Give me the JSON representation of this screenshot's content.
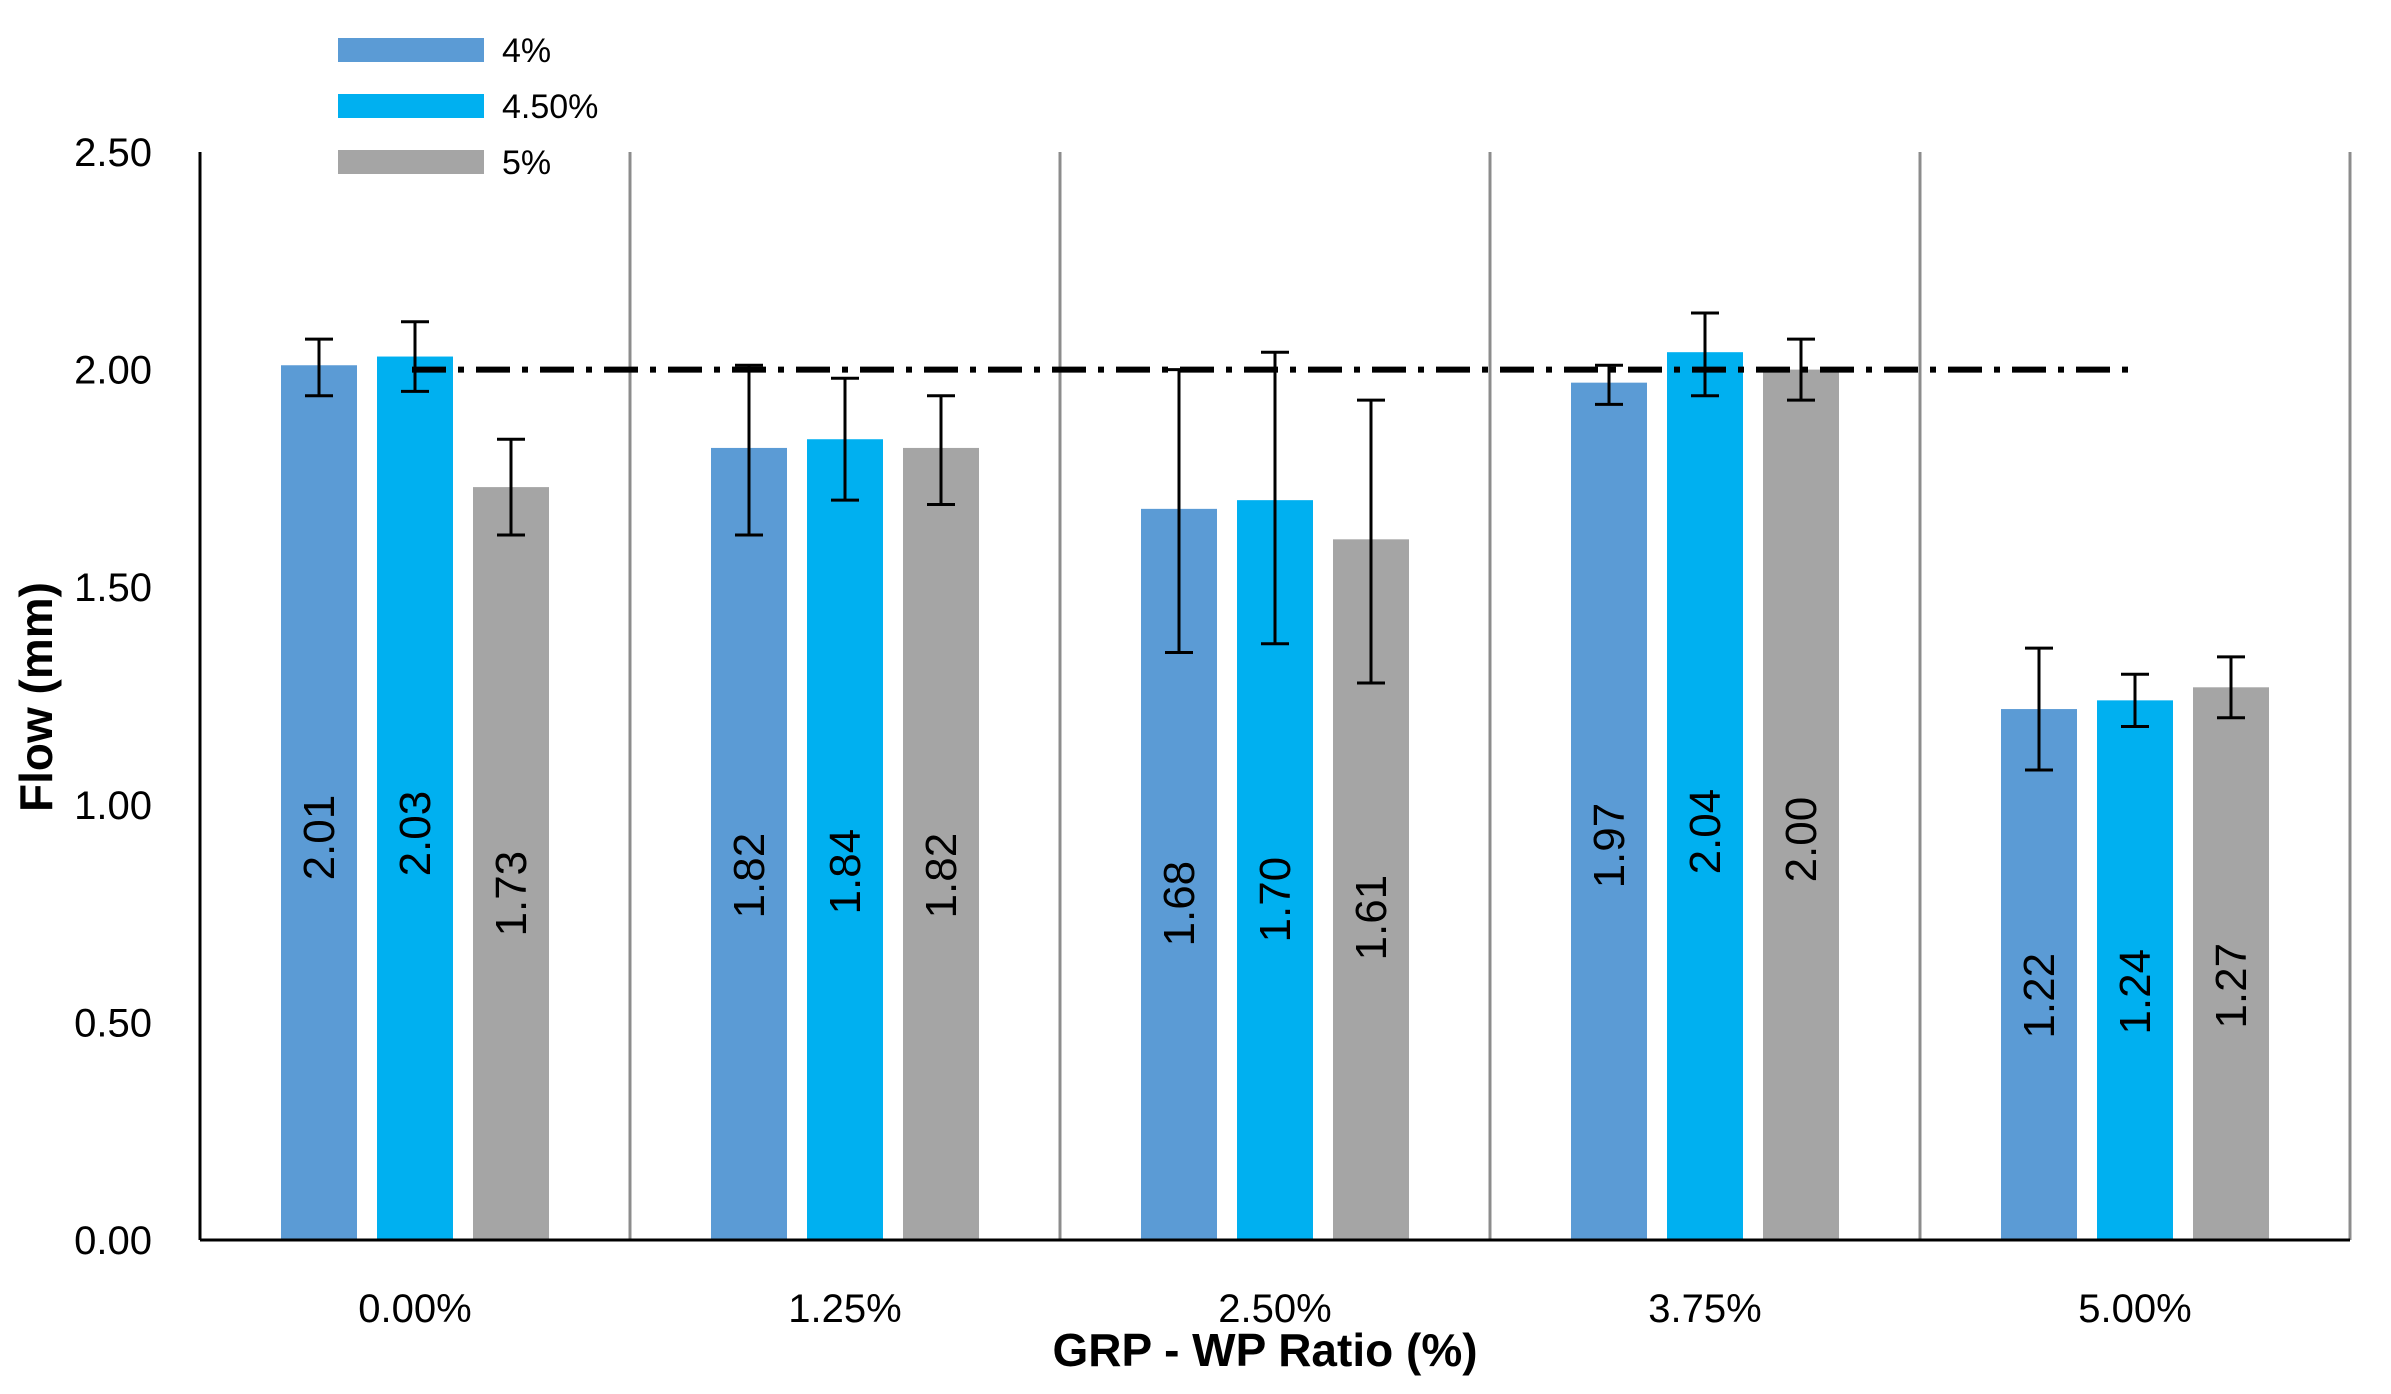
{
  "chart_data": {
    "type": "bar",
    "title": "",
    "xlabel": "GRP - WP Ratio (%)",
    "ylabel": "Flow (mm)",
    "ylim": [
      0,
      2.5
    ],
    "yticks": [
      "0.00",
      "0.50",
      "1.00",
      "1.50",
      "2.00",
      "2.50"
    ],
    "categories": [
      "0.00%",
      "1.25%",
      "2.50%",
      "3.75%",
      "5.00%"
    ],
    "series": [
      {
        "name": "4%",
        "color": "#5b9bd5",
        "values": [
          2.01,
          1.82,
          1.68,
          1.97,
          1.22
        ],
        "labels": [
          "2.01",
          "1.82",
          "1.68",
          "1.97",
          "1.22"
        ],
        "err_low": [
          1.94,
          1.62,
          1.35,
          1.92,
          1.08
        ],
        "err_high": [
          2.07,
          2.01,
          2.0,
          2.01,
          1.36
        ]
      },
      {
        "name": "4.50%",
        "color": "#00b0f0",
        "values": [
          2.03,
          1.84,
          1.7,
          2.04,
          1.24
        ],
        "labels": [
          "2.03",
          "1.84",
          "1.70",
          "2.04",
          "1.24"
        ],
        "err_low": [
          1.95,
          1.7,
          1.37,
          1.94,
          1.18
        ],
        "err_high": [
          2.11,
          1.98,
          2.04,
          2.13,
          1.3
        ]
      },
      {
        "name": "5%",
        "color": "#a5a5a5",
        "values": [
          1.73,
          1.82,
          1.61,
          2.0,
          1.27
        ],
        "labels": [
          "1.73",
          "1.82",
          "1.61",
          "2.00",
          "1.27"
        ],
        "err_low": [
          1.62,
          1.69,
          1.28,
          1.93,
          1.2
        ],
        "err_high": [
          1.84,
          1.94,
          1.93,
          2.07,
          1.34
        ]
      }
    ],
    "reference_line": {
      "y": 2.0,
      "style": "dash-dot",
      "color": "#000000"
    },
    "legend_position": "top-left",
    "grid": "vertical category separators"
  }
}
